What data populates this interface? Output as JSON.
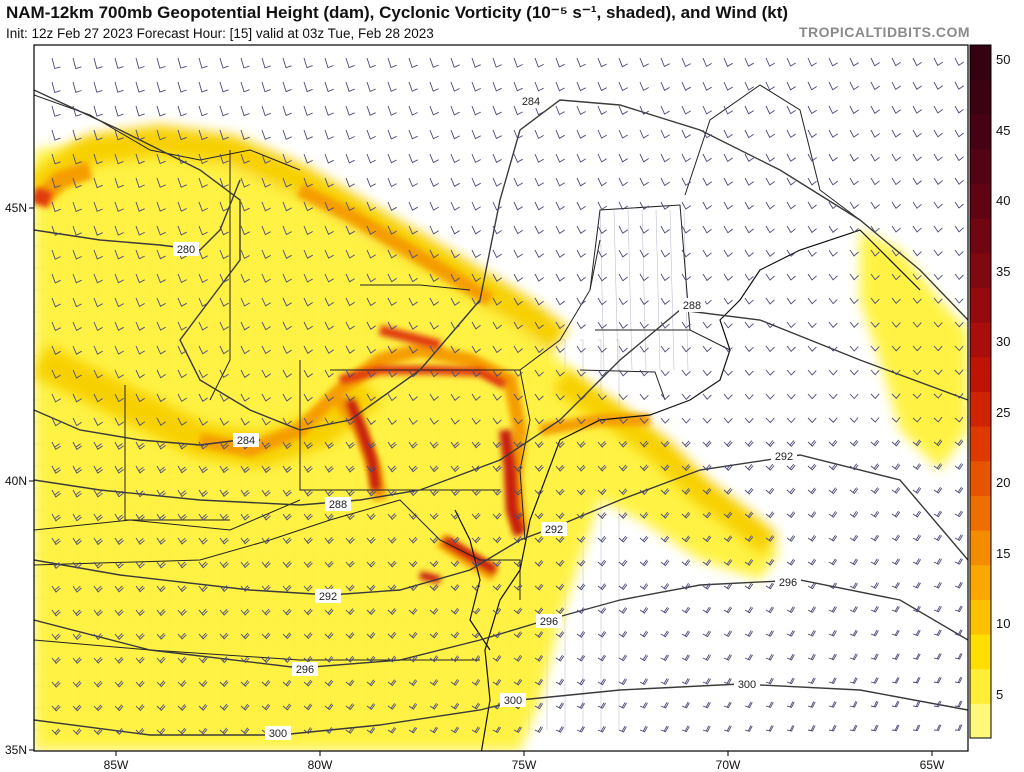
{
  "header": {
    "title": "NAM-12km 700mb Geopotential Height (dam), Cyclonic Vorticity (10⁻⁵ s⁻¹, shaded), and Wind (kt)",
    "subtitle": "Init: 12z Feb 27 2023   Forecast Hour: [15]   valid at 03z Tue, Feb 28 2023",
    "credit": "TROPICALTIDBITS.COM"
  },
  "map": {
    "longitude_labels": [
      "85W",
      "80W",
      "75W",
      "70W",
      "65W"
    ],
    "latitude_labels": [
      "45N",
      "40N",
      "35N"
    ],
    "contour_labels": [
      "284",
      "280",
      "288",
      "284",
      "292",
      "288",
      "292",
      "292",
      "296",
      "296",
      "296",
      "300",
      "300",
      "300"
    ],
    "colors": {
      "contour": "#3a3a3a",
      "border": "#222222",
      "county": "#9a9ab4",
      "barb": "#3a3a6a",
      "vort_light": "#fff23a",
      "vort_yellow": "#f7d000",
      "vort_orange": "#f59d00",
      "vort_red": "#e03a10",
      "vort_dark": "#a8120a"
    }
  },
  "colorbar": {
    "labels": [
      "50",
      "45",
      "40",
      "35",
      "30",
      "25",
      "20",
      "15",
      "10",
      "5"
    ],
    "colors": [
      "#fff87a",
      "#ffee38",
      "#ffde00",
      "#fcc200",
      "#f8a800",
      "#f48c00",
      "#ee6e00",
      "#e65400",
      "#de3a00",
      "#d02400",
      "#be1406",
      "#aa0e0a",
      "#940a0e",
      "#800810",
      "#700612",
      "#600414",
      "#520314",
      "#460214",
      "#3c0212",
      "#340210"
    ]
  }
}
